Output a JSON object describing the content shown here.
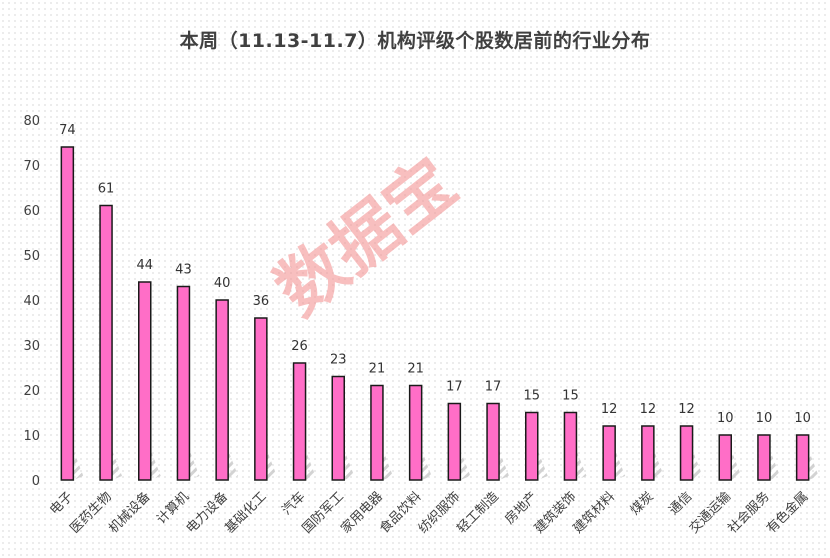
{
  "chart_data": {
    "type": "bar",
    "title": "本周（11.13-11.7）机构评级个股数居前的行业分布",
    "xlabel": "",
    "ylabel": "",
    "ylim": [
      0,
      80
    ],
    "yticks": [
      0,
      10,
      20,
      30,
      40,
      50,
      60,
      70,
      80
    ],
    "grid": false,
    "legend": "none",
    "categories": [
      "电子",
      "医药生物",
      "机械设备",
      "计算机",
      "电力设备",
      "基础化工",
      "汽车",
      "国防军工",
      "家用电器",
      "食品饮料",
      "纺织服饰",
      "轻工制造",
      "房地产",
      "建筑装饰",
      "建筑材料",
      "煤炭",
      "通信",
      "交通运输",
      "社会服务",
      "有色金属"
    ],
    "values": [
      74,
      61,
      44,
      43,
      40,
      36,
      26,
      23,
      21,
      21,
      17,
      17,
      15,
      15,
      12,
      12,
      12,
      10,
      10,
      10
    ],
    "bar_color": "#ff6ec7",
    "bar_edge_color": "#1a1a1a"
  },
  "watermark": "数据宝"
}
